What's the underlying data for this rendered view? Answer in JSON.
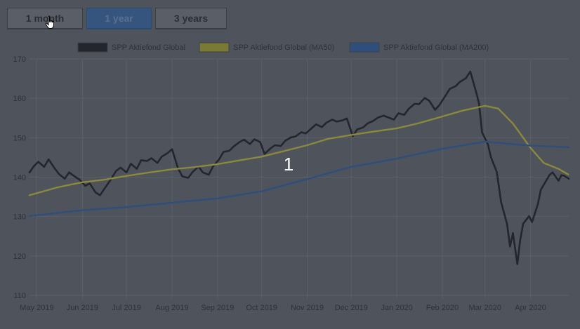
{
  "buttons": [
    {
      "label": "1 month",
      "active": false
    },
    {
      "label": "1 year",
      "active": true
    },
    {
      "label": "3 years",
      "active": false
    }
  ],
  "overlay_number": "1",
  "colors": {
    "background": "#4f535c",
    "grid": "#5c6068",
    "tick_text": "#2e3138",
    "legend_text": "#2e3138",
    "overlay_text": "#ffffff",
    "price": "#24262d",
    "ma50": "#8a8a3a",
    "ma200": "#2e4e7c"
  },
  "chart_data": {
    "type": "line",
    "title": "",
    "xlabel": "",
    "ylabel": "",
    "ylim": [
      110,
      170
    ],
    "yticks": [
      110,
      120,
      130,
      140,
      150,
      160,
      170
    ],
    "xlim": [
      "2019-04-26",
      "2020-04-27"
    ],
    "xticks": [
      {
        "date": "2019-05-01",
        "label": "May 2019"
      },
      {
        "date": "2019-06-01",
        "label": "Jun 2019"
      },
      {
        "date": "2019-07-01",
        "label": "Jul 2019"
      },
      {
        "date": "2019-08-01",
        "label": "Aug 2019"
      },
      {
        "date": "2019-09-01",
        "label": "Sep 2019"
      },
      {
        "date": "2019-10-01",
        "label": "Oct 2019"
      },
      {
        "date": "2019-11-01",
        "label": "Nov 2019"
      },
      {
        "date": "2019-12-01",
        "label": "Dec 2019"
      },
      {
        "date": "2020-01-01",
        "label": "Jan 2020"
      },
      {
        "date": "2020-02-01",
        "label": "Feb 2020"
      },
      {
        "date": "2020-03-01",
        "label": "Mar 2020"
      },
      {
        "date": "2020-04-01",
        "label": "Apr 2020"
      }
    ],
    "grid": true,
    "legend_position": "top",
    "series": [
      {
        "name": "SPP Aktiefond Global",
        "points": [
          [
            "2019-04-26",
            141.2
          ],
          [
            "2019-04-29",
            142.8
          ],
          [
            "2019-05-02",
            143.9
          ],
          [
            "2019-05-06",
            142.6
          ],
          [
            "2019-05-09",
            144.5
          ],
          [
            "2019-05-13",
            142.3
          ],
          [
            "2019-05-16",
            140.8
          ],
          [
            "2019-05-20",
            139.6
          ],
          [
            "2019-05-23",
            141.2
          ],
          [
            "2019-05-27",
            140.1
          ],
          [
            "2019-05-30",
            139.4
          ],
          [
            "2019-06-03",
            137.8
          ],
          [
            "2019-06-06",
            138.4
          ],
          [
            "2019-06-10",
            136.1
          ],
          [
            "2019-06-13",
            135.4
          ],
          [
            "2019-06-17",
            137.6
          ],
          [
            "2019-06-20",
            139.2
          ],
          [
            "2019-06-24",
            141.6
          ],
          [
            "2019-06-27",
            142.4
          ],
          [
            "2019-07-01",
            141.2
          ],
          [
            "2019-07-04",
            143.4
          ],
          [
            "2019-07-08",
            142.1
          ],
          [
            "2019-07-11",
            144.3
          ],
          [
            "2019-07-15",
            144.1
          ],
          [
            "2019-07-18",
            144.8
          ],
          [
            "2019-07-22",
            143.6
          ],
          [
            "2019-07-25",
            145.2
          ],
          [
            "2019-07-29",
            146.1
          ],
          [
            "2019-08-01",
            147.1
          ],
          [
            "2019-08-05",
            142.3
          ],
          [
            "2019-08-08",
            140.2
          ],
          [
            "2019-08-12",
            139.8
          ],
          [
            "2019-08-15",
            141.3
          ],
          [
            "2019-08-19",
            142.7
          ],
          [
            "2019-08-22",
            141.2
          ],
          [
            "2019-08-26",
            140.6
          ],
          [
            "2019-08-29",
            142.8
          ],
          [
            "2019-09-02",
            144.5
          ],
          [
            "2019-09-05",
            146.4
          ],
          [
            "2019-09-09",
            146.7
          ],
          [
            "2019-09-12",
            147.8
          ],
          [
            "2019-09-16",
            148.9
          ],
          [
            "2019-09-19",
            149.5
          ],
          [
            "2019-09-23",
            148.4
          ],
          [
            "2019-09-26",
            149.6
          ],
          [
            "2019-09-30",
            148.9
          ],
          [
            "2019-10-03",
            145.9
          ],
          [
            "2019-10-07",
            147.3
          ],
          [
            "2019-10-10",
            148.1
          ],
          [
            "2019-10-14",
            147.9
          ],
          [
            "2019-10-17",
            149.2
          ],
          [
            "2019-10-21",
            150.1
          ],
          [
            "2019-10-24",
            150.3
          ],
          [
            "2019-10-28",
            151.4
          ],
          [
            "2019-10-31",
            151.1
          ],
          [
            "2019-11-04",
            152.4
          ],
          [
            "2019-11-07",
            153.4
          ],
          [
            "2019-11-11",
            152.7
          ],
          [
            "2019-11-14",
            153.8
          ],
          [
            "2019-11-18",
            154.6
          ],
          [
            "2019-11-21",
            154.1
          ],
          [
            "2019-11-25",
            154.4
          ],
          [
            "2019-11-28",
            154.9
          ],
          [
            "2019-12-02",
            150.4
          ],
          [
            "2019-12-05",
            152.1
          ],
          [
            "2019-12-09",
            152.6
          ],
          [
            "2019-12-12",
            153.6
          ],
          [
            "2019-12-16",
            154.3
          ],
          [
            "2019-12-19",
            155.1
          ],
          [
            "2019-12-23",
            155.6
          ],
          [
            "2019-12-30",
            154.6
          ],
          [
            "2020-01-02",
            156.2
          ],
          [
            "2020-01-06",
            155.8
          ],
          [
            "2020-01-09",
            157.3
          ],
          [
            "2020-01-13",
            158.6
          ],
          [
            "2020-01-16",
            158.5
          ],
          [
            "2020-01-20",
            160.1
          ],
          [
            "2020-01-23",
            159.4
          ],
          [
            "2020-01-27",
            157.1
          ],
          [
            "2020-01-30",
            158.3
          ],
          [
            "2020-02-03",
            160.6
          ],
          [
            "2020-02-06",
            162.4
          ],
          [
            "2020-02-10",
            163.1
          ],
          [
            "2020-02-13",
            164.2
          ],
          [
            "2020-02-17",
            165.1
          ],
          [
            "2020-02-20",
            166.8
          ],
          [
            "2020-02-24",
            161.5
          ],
          [
            "2020-02-26",
            158.6
          ],
          [
            "2020-02-28",
            151.4
          ],
          [
            "2020-03-03",
            148.3
          ],
          [
            "2020-03-05",
            145.1
          ],
          [
            "2020-03-09",
            141.3
          ],
          [
            "2020-03-12",
            133.6
          ],
          [
            "2020-03-16",
            128.1
          ],
          [
            "2020-03-18",
            122.4
          ],
          [
            "2020-03-20",
            125.8
          ],
          [
            "2020-03-23",
            117.9
          ],
          [
            "2020-03-25",
            124.1
          ],
          [
            "2020-03-27",
            128.2
          ],
          [
            "2020-03-31",
            130.1
          ],
          [
            "2020-04-02",
            128.6
          ],
          [
            "2020-04-06",
            133.2
          ],
          [
            "2020-04-08",
            136.8
          ],
          [
            "2020-04-14",
            140.6
          ],
          [
            "2020-04-16",
            141.2
          ],
          [
            "2020-04-20",
            139.1
          ],
          [
            "2020-04-22",
            140.5
          ],
          [
            "2020-04-24",
            140.3
          ],
          [
            "2020-04-27",
            139.6
          ]
        ]
      },
      {
        "name": "SPP Aktiefond Global (MA50)",
        "points": [
          [
            "2019-04-26",
            135.4
          ],
          [
            "2019-05-15",
            137.4
          ],
          [
            "2019-06-01",
            138.7
          ],
          [
            "2019-06-15",
            139.3
          ],
          [
            "2019-07-01",
            140.3
          ],
          [
            "2019-07-15",
            141.1
          ],
          [
            "2019-08-01",
            142.0
          ],
          [
            "2019-08-15",
            142.5
          ],
          [
            "2019-09-01",
            143.3
          ],
          [
            "2019-09-15",
            144.2
          ],
          [
            "2019-10-01",
            145.2
          ],
          [
            "2019-10-15",
            146.5
          ],
          [
            "2019-11-01",
            148.1
          ],
          [
            "2019-11-15",
            149.7
          ],
          [
            "2019-12-01",
            150.7
          ],
          [
            "2019-12-15",
            151.5
          ],
          [
            "2020-01-01",
            152.4
          ],
          [
            "2020-01-15",
            153.6
          ],
          [
            "2020-02-01",
            155.4
          ],
          [
            "2020-02-15",
            156.9
          ],
          [
            "2020-03-01",
            158.1
          ],
          [
            "2020-03-10",
            157.4
          ],
          [
            "2020-03-20",
            153.6
          ],
          [
            "2020-04-01",
            147.4
          ],
          [
            "2020-04-10",
            143.6
          ],
          [
            "2020-04-20",
            142.1
          ],
          [
            "2020-04-27",
            140.6
          ]
        ]
      },
      {
        "name": "SPP Aktiefond Global (MA200)",
        "points": [
          [
            "2019-04-26",
            130.1
          ],
          [
            "2019-06-01",
            131.6
          ],
          [
            "2019-07-01",
            132.4
          ],
          [
            "2019-08-01",
            133.5
          ],
          [
            "2019-09-01",
            134.6
          ],
          [
            "2019-10-01",
            136.4
          ],
          [
            "2019-11-01",
            139.5
          ],
          [
            "2019-12-01",
            142.6
          ],
          [
            "2020-01-01",
            144.7
          ],
          [
            "2020-02-01",
            147.2
          ],
          [
            "2020-03-01",
            149.0
          ],
          [
            "2020-04-01",
            148.0
          ],
          [
            "2020-04-27",
            147.6
          ]
        ]
      }
    ]
  }
}
